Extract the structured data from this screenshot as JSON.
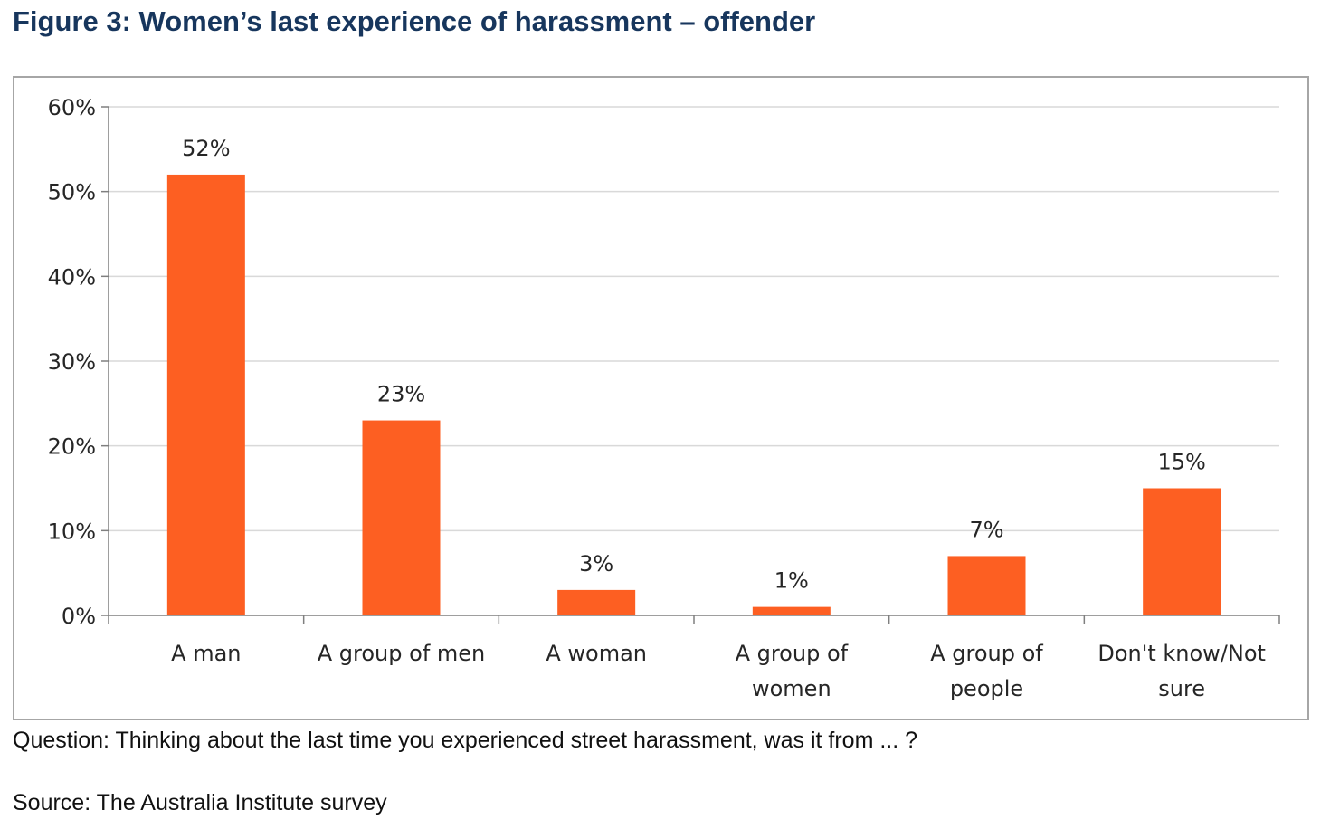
{
  "figure": {
    "title": "Figure 3: Women’s last experience of harassment – offender",
    "question": "Question: Thinking about the last time you experienced street harassment, was it from ... ?",
    "source": "Source: The Australia Institute survey"
  },
  "colors": {
    "bar": "#fd5f22",
    "grid": "#d9d9d9",
    "axis": "#7f7f7f",
    "title": "#17365d",
    "frame": "#a6a6a6"
  },
  "chart_data": {
    "type": "bar",
    "categories": [
      [
        "A man"
      ],
      [
        "A group of men"
      ],
      [
        "A woman"
      ],
      [
        "A group of",
        "women"
      ],
      [
        "A group of",
        "people"
      ],
      [
        "Don't know/Not",
        "sure"
      ]
    ],
    "values": [
      52,
      23,
      3,
      1,
      7,
      15
    ],
    "data_labels": [
      "52%",
      "23%",
      "3%",
      "1%",
      "7%",
      "15%"
    ],
    "yticks": [
      0,
      10,
      20,
      30,
      40,
      50,
      60
    ],
    "ytick_labels": [
      "0%",
      "10%",
      "20%",
      "30%",
      "40%",
      "50%",
      "60%"
    ],
    "ylim": [
      0,
      60
    ],
    "grid": true,
    "legend": "none"
  }
}
